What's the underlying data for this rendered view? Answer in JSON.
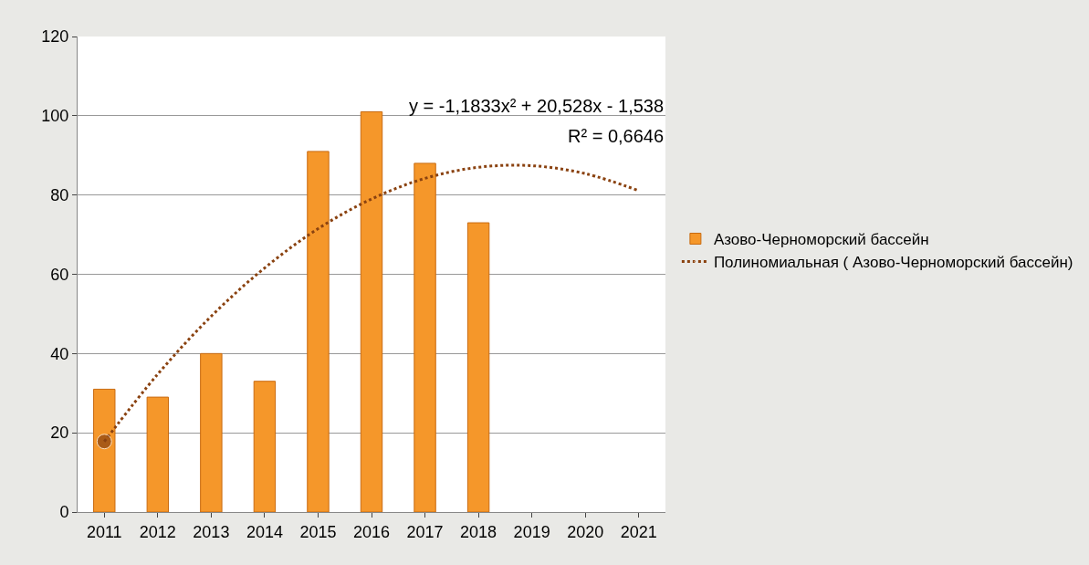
{
  "chart_data": {
    "type": "bar",
    "categories": [
      "2011",
      "2012",
      "2013",
      "2014",
      "2015",
      "2016",
      "2017",
      "2018",
      "2019",
      "2020",
      "2021"
    ],
    "series": [
      {
        "name": "Азово-Черноморский бассейн",
        "color": "#f5972a",
        "values": [
          31,
          29,
          40,
          33,
          91,
          101,
          88,
          73,
          null,
          null,
          null
        ]
      },
      {
        "name": "Полиномиальная ( Азово-Черноморский бассейн)",
        "type": "line",
        "color": "#8a4210",
        "line_style": "dotted",
        "values": [
          17.8,
          34.8,
          49.4,
          61.6,
          71.5,
          79,
          84.2,
          87,
          87.4,
          85.4,
          81.1
        ]
      }
    ],
    "annotations": [
      "y = -1,1833x² + 20,528x - 1,538",
      "R² = 0,6646"
    ],
    "ylim": [
      0,
      120
    ],
    "yticks": [
      0,
      20,
      40,
      60,
      80,
      100,
      120
    ],
    "grid": "y",
    "legend": "right"
  }
}
